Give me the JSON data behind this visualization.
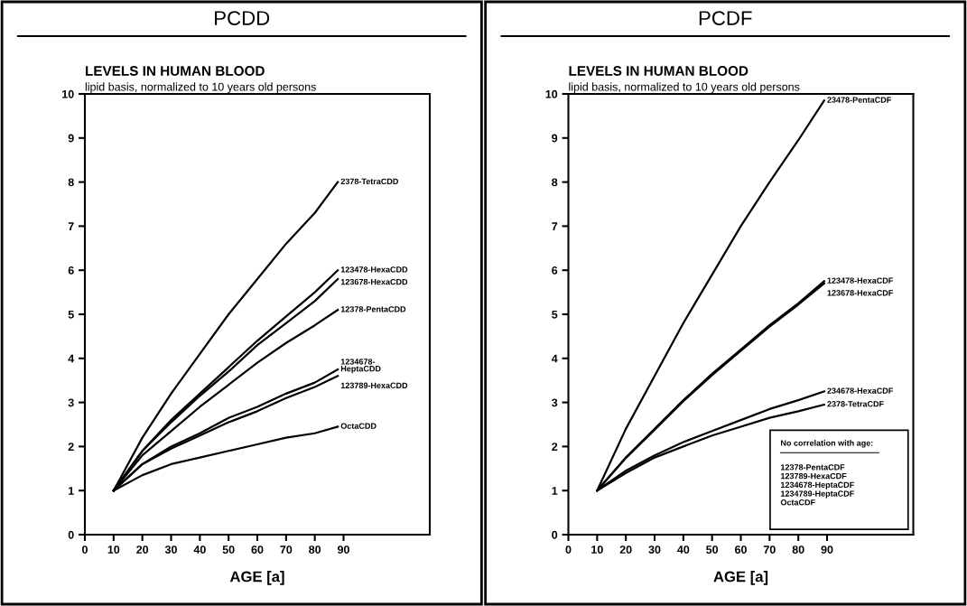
{
  "chart_data": [
    {
      "type": "line",
      "title": "PCDD",
      "subtitle": "LEVELS IN HUMAN BLOOD\nlipid basis, normalized to 10 years old persons",
      "xlabel": "AGE [a]",
      "xlim": [
        0,
        120
      ],
      "xticks": [
        0,
        10,
        20,
        30,
        40,
        50,
        60,
        70,
        80,
        90
      ],
      "ylim": [
        0,
        10
      ],
      "yticks": [
        0,
        1,
        2,
        3,
        4,
        5,
        6,
        7,
        8,
        9,
        10
      ],
      "grid": false,
      "legend": false,
      "marker": "none",
      "line_style": "solid",
      "x": [
        10,
        20,
        30,
        40,
        50,
        60,
        70,
        80,
        88
      ],
      "series": [
        {
          "name": "2378-TetraCDD",
          "color": "#000000",
          "values": [
            1,
            2.2,
            3.2,
            4.1,
            5.0,
            5.8,
            6.6,
            7.3,
            8.0
          ]
        },
        {
          "name": "123478-HexaCDD",
          "color": "#000000",
          "values": [
            1,
            1.9,
            2.6,
            3.2,
            3.8,
            4.4,
            4.95,
            5.5,
            6.0
          ]
        },
        {
          "name": "123678-HexaCDD",
          "color": "#000000",
          "values": [
            1,
            1.9,
            2.55,
            3.15,
            3.7,
            4.3,
            4.8,
            5.3,
            5.8
          ]
        },
        {
          "name": "12378-PentaCDD",
          "color": "#000000",
          "values": [
            1,
            1.8,
            2.35,
            2.9,
            3.4,
            3.9,
            4.35,
            4.75,
            5.1
          ]
        },
        {
          "name": "1234678-\nHeptaCDD",
          "color": "#000000",
          "values": [
            1,
            1.6,
            2.0,
            2.3,
            2.65,
            2.9,
            3.2,
            3.45,
            3.75
          ]
        },
        {
          "name": "123789-HexaCDD",
          "color": "#000000",
          "values": [
            1,
            1.6,
            1.95,
            2.25,
            2.55,
            2.8,
            3.1,
            3.35,
            3.6
          ]
        },
        {
          "name": "OctaCDD",
          "color": "#000000",
          "values": [
            1,
            1.35,
            1.6,
            1.75,
            1.9,
            2.05,
            2.2,
            2.3,
            2.45
          ]
        }
      ]
    },
    {
      "type": "line",
      "title": "PCDF",
      "subtitle": "LEVELS IN HUMAN BLOOD\nlipid basis, normalized to 10 years old persons",
      "xlabel": "AGE [a]",
      "xlim": [
        0,
        120
      ],
      "xticks": [
        0,
        10,
        20,
        30,
        40,
        50,
        60,
        70,
        80,
        90
      ],
      "ylim": [
        0,
        10
      ],
      "yticks": [
        0,
        1,
        2,
        3,
        4,
        5,
        6,
        7,
        8,
        9,
        10
      ],
      "grid": false,
      "legend": false,
      "marker": "none",
      "line_style": "solid",
      "x": [
        10,
        20,
        30,
        40,
        50,
        60,
        70,
        80,
        89
      ],
      "series": [
        {
          "name": "23478-PentaCDF",
          "color": "#000000",
          "values": [
            1,
            2.4,
            3.6,
            4.8,
            5.9,
            7.0,
            8.0,
            8.95,
            9.85
          ]
        },
        {
          "name": "123478-HexaCDF",
          "color": "#000000",
          "values": [
            1,
            1.75,
            2.4,
            3.05,
            3.65,
            4.2,
            4.75,
            5.25,
            5.75
          ]
        },
        {
          "name": "123678-HexaCDF",
          "color": "#000000",
          "values": [
            1,
            1.74,
            2.38,
            3.03,
            3.62,
            4.17,
            4.72,
            5.22,
            5.7
          ]
        },
        {
          "name": "234678-HexaCDF",
          "color": "#000000",
          "values": [
            1,
            1.45,
            1.8,
            2.1,
            2.35,
            2.6,
            2.85,
            3.05,
            3.25
          ]
        },
        {
          "name": "2378-TetraCDF",
          "color": "#000000",
          "values": [
            1,
            1.4,
            1.75,
            2.0,
            2.25,
            2.45,
            2.65,
            2.8,
            2.95
          ]
        }
      ],
      "annotations": [
        "No correlation with age:",
        "12378-PentaCDF\n123789-HexaCDF\n1234678-HeptaCDF\n1234789-HeptaCDF\nOctaCDF"
      ]
    }
  ]
}
